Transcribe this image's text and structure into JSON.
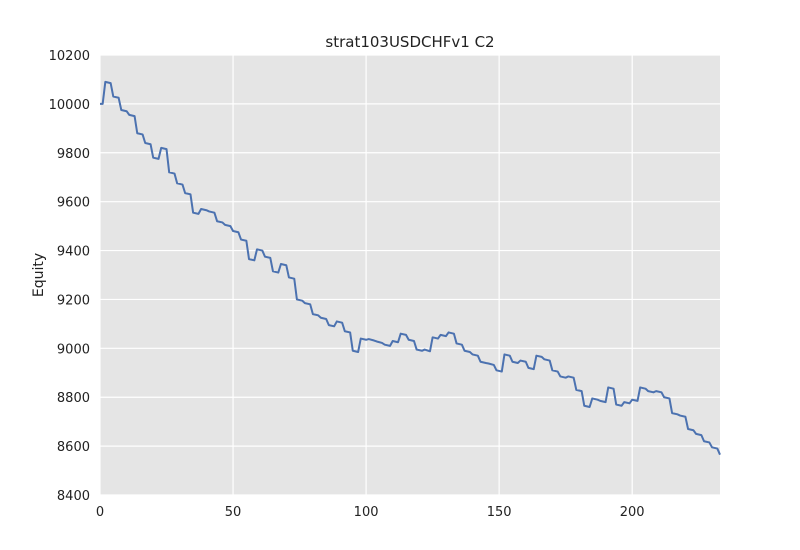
{
  "chart_data": {
    "type": "line",
    "title": "strat103USDCHFv1 C2",
    "xlabel": "",
    "ylabel": "Equity",
    "xlim": [
      0,
      233
    ],
    "ylim": [
      8400,
      10200
    ],
    "xticks": [
      0,
      50,
      100,
      150,
      200
    ],
    "yticks": [
      8400,
      8600,
      8800,
      9000,
      9200,
      9400,
      9600,
      9800,
      10000,
      10200
    ],
    "grid": true,
    "series": [
      {
        "name": "Equity",
        "color": "#4c72b0",
        "x": [
          0,
          1,
          2,
          4,
          5,
          7,
          8,
          10,
          11,
          13,
          14,
          16,
          17,
          19,
          20,
          22,
          23,
          25,
          26,
          28,
          29,
          31,
          32,
          34,
          35,
          37,
          38,
          40,
          41,
          43,
          44,
          46,
          47,
          49,
          50,
          52,
          53,
          55,
          56,
          58,
          59,
          61,
          62,
          64,
          65,
          67,
          68,
          70,
          71,
          73,
          74,
          76,
          77,
          79,
          80,
          82,
          83,
          85,
          86,
          88,
          89,
          91,
          92,
          94,
          95,
          97,
          98,
          100,
          101,
          103,
          104,
          106,
          107,
          109,
          110,
          112,
          113,
          115,
          116,
          118,
          119,
          121,
          122,
          124,
          125,
          127,
          128,
          130,
          131,
          133,
          134,
          136,
          137,
          139,
          140,
          142,
          143,
          145,
          146,
          148,
          149,
          151,
          152,
          154,
          155,
          157,
          158,
          160,
          161,
          163,
          164,
          166,
          167,
          169,
          170,
          172,
          173,
          175,
          176,
          178,
          179,
          181,
          182,
          184,
          185,
          187,
          188,
          190,
          191,
          193,
          194,
          196,
          197,
          199,
          200,
          202,
          203,
          205,
          206,
          208,
          209,
          211,
          212,
          214,
          215,
          217,
          218,
          220,
          221,
          223,
          224,
          226,
          227,
          229,
          230,
          232,
          233
        ],
        "y": [
          10000,
          10000,
          10090,
          10085,
          10030,
          10025,
          9975,
          9970,
          9955,
          9950,
          9880,
          9875,
          9840,
          9835,
          9780,
          9775,
          9820,
          9815,
          9720,
          9715,
          9675,
          9670,
          9635,
          9630,
          9555,
          9550,
          9570,
          9565,
          9560,
          9555,
          9520,
          9515,
          9505,
          9500,
          9480,
          9475,
          9445,
          9440,
          9365,
          9360,
          9405,
          9400,
          9375,
          9370,
          9315,
          9310,
          9345,
          9340,
          9290,
          9285,
          9200,
          9195,
          9185,
          9180,
          9140,
          9135,
          9125,
          9120,
          9095,
          9090,
          9110,
          9105,
          9070,
          9065,
          8990,
          8985,
          9040,
          9035,
          9038,
          9032,
          9028,
          9022,
          9015,
          9010,
          9030,
          9025,
          9060,
          9055,
          9035,
          9030,
          8995,
          8990,
          8995,
          8988,
          9045,
          9040,
          9055,
          9050,
          9065,
          9060,
          9020,
          9015,
          8990,
          8985,
          8975,
          8970,
          8945,
          8940,
          8938,
          8932,
          8910,
          8905,
          8975,
          8970,
          8945,
          8940,
          8950,
          8945,
          8920,
          8915,
          8970,
          8965,
          8955,
          8950,
          8910,
          8905,
          8885,
          8880,
          8885,
          8880,
          8830,
          8825,
          8765,
          8760,
          8795,
          8790,
          8785,
          8780,
          8840,
          8835,
          8770,
          8765,
          8780,
          8775,
          8790,
          8785,
          8840,
          8835,
          8825,
          8820,
          8825,
          8820,
          8800,
          8795,
          8735,
          8730,
          8725,
          8720,
          8670,
          8665,
          8650,
          8645,
          8620,
          8615,
          8595,
          8590,
          8565
        ]
      }
    ]
  }
}
